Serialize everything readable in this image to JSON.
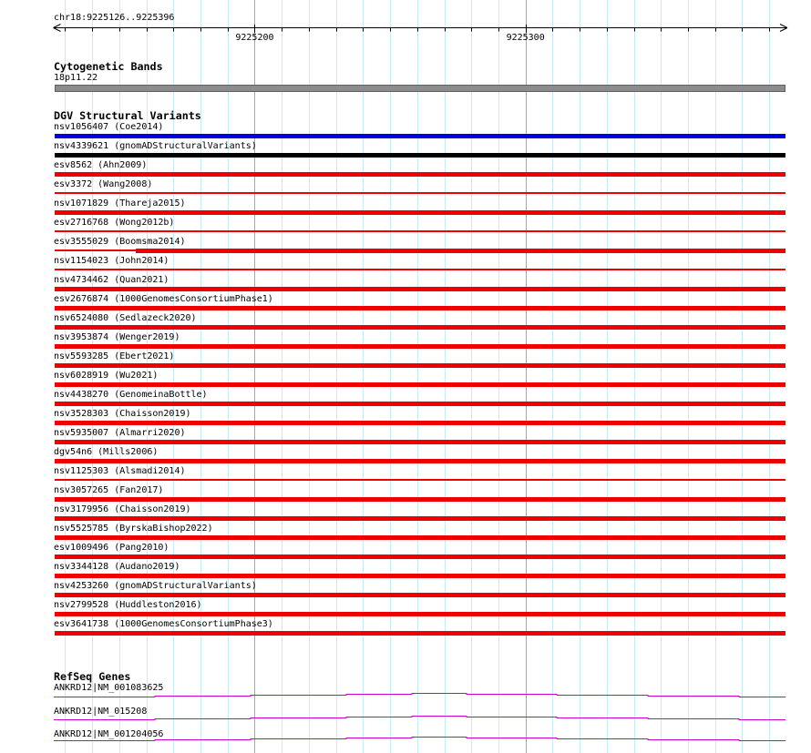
{
  "region": {
    "title": "chr18:9225126..9225396",
    "chromosome": "chr18",
    "start": 9225126,
    "end": 9225396
  },
  "ruler": {
    "minor_step_bp": 10,
    "major_step_bp": 100,
    "major_ticks": [
      {
        "position": 9225200,
        "label": "9225200"
      },
      {
        "position": 9225300,
        "label": "9225300"
      }
    ]
  },
  "grid": {
    "minor_color": "#c8edf4",
    "major_color": "#77b6d6"
  },
  "tracks": {
    "cytogenetic_bands": {
      "header": "Cytogenetic Bands",
      "band": {
        "name": "18p11.22",
        "fill": "#8c8c8c",
        "border": "#5f5f5f"
      }
    },
    "dgv_structural_variants": {
      "header": "DGV Structural Variants",
      "variants": [
        {
          "label": "nsv1056407 (Coe2014)",
          "color": "#0000e0",
          "segments": [
            {
              "start": 9225126,
              "end": 9225396,
              "thick": true
            }
          ]
        },
        {
          "label": "nsv4339621 (gnomADStructuralVariants)",
          "color": "#000000",
          "segments": [
            {
              "start": 9225126,
              "end": 9225396,
              "thick": true
            }
          ]
        },
        {
          "label": "esv8562 (Ahn2009)",
          "color": "#ee0000",
          "segments": [
            {
              "start": 9225126,
              "end": 9225396,
              "thick": true
            }
          ]
        },
        {
          "label": "esv3372 (Wang2008)",
          "color": "#ee0000",
          "segments": [
            {
              "start": 9225126,
              "end": 9225396,
              "thick": false
            }
          ]
        },
        {
          "label": "nsv1071829 (Thareja2015)",
          "color": "#ee0000",
          "segments": [
            {
              "start": 9225126,
              "end": 9225396,
              "thick": true
            }
          ]
        },
        {
          "label": "esv2716768 (Wong2012b)",
          "color": "#ee0000",
          "segments": [
            {
              "start": 9225126,
              "end": 9225396,
              "thick": false
            }
          ]
        },
        {
          "label": "esv3555029 (Boomsma2014)",
          "color": "#ee0000",
          "segments": [
            {
              "start": 9225126,
              "end": 9225156,
              "thick": false
            },
            {
              "start": 9225156,
              "end": 9225396,
              "thick": true
            }
          ]
        },
        {
          "label": "nsv1154023 (John2014)",
          "color": "#ee0000",
          "segments": [
            {
              "start": 9225126,
              "end": 9225396,
              "thick": false
            }
          ]
        },
        {
          "label": "nsv4734462 (Quan2021)",
          "color": "#ee0000",
          "segments": [
            {
              "start": 9225126,
              "end": 9225396,
              "thick": true
            }
          ]
        },
        {
          "label": "esv2676874 (1000GenomesConsortiumPhase1)",
          "color": "#ee0000",
          "segments": [
            {
              "start": 9225126,
              "end": 9225396,
              "thick": true
            }
          ]
        },
        {
          "label": "nsv6524080 (Sedlazeck2020)",
          "color": "#ee0000",
          "segments": [
            {
              "start": 9225126,
              "end": 9225396,
              "thick": true
            }
          ]
        },
        {
          "label": "nsv3953874 (Wenger2019)",
          "color": "#ee0000",
          "segments": [
            {
              "start": 9225126,
              "end": 9225396,
              "thick": true
            }
          ]
        },
        {
          "label": "nsv5593285 (Ebert2021)",
          "color": "#ee0000",
          "segments": [
            {
              "start": 9225126,
              "end": 9225396,
              "thick": true
            }
          ]
        },
        {
          "label": "nsv6028919 (Wu2021)",
          "color": "#ee0000",
          "segments": [
            {
              "start": 9225126,
              "end": 9225396,
              "thick": true
            }
          ]
        },
        {
          "label": "nsv4438270 (GenomeinaBottle)",
          "color": "#ee0000",
          "segments": [
            {
              "start": 9225126,
              "end": 9225396,
              "thick": true
            }
          ]
        },
        {
          "label": "nsv3528303 (Chaisson2019)",
          "color": "#ee0000",
          "segments": [
            {
              "start": 9225126,
              "end": 9225396,
              "thick": true
            }
          ]
        },
        {
          "label": "nsv5935007 (Almarri2020)",
          "color": "#ee0000",
          "segments": [
            {
              "start": 9225126,
              "end": 9225396,
              "thick": true
            }
          ]
        },
        {
          "label": "dgv54n6 (Mills2006)",
          "color": "#ee0000",
          "segments": [
            {
              "start": 9225126,
              "end": 9225396,
              "thick": true
            }
          ]
        },
        {
          "label": "nsv1125303 (Alsmadi2014)",
          "color": "#ee0000",
          "segments": [
            {
              "start": 9225126,
              "end": 9225396,
              "thick": false
            }
          ]
        },
        {
          "label": "nsv3057265 (Fan2017)",
          "color": "#ee0000",
          "segments": [
            {
              "start": 9225126,
              "end": 9225396,
              "thick": true
            }
          ]
        },
        {
          "label": "nsv3179956 (Chaisson2019)",
          "color": "#ee0000",
          "segments": [
            {
              "start": 9225126,
              "end": 9225396,
              "thick": true
            }
          ]
        },
        {
          "label": "nsv5525785 (ByrskaBishop2022)",
          "color": "#ee0000",
          "segments": [
            {
              "start": 9225126,
              "end": 9225396,
              "thick": true
            }
          ]
        },
        {
          "label": "esv1009496 (Pang2010)",
          "color": "#ee0000",
          "segments": [
            {
              "start": 9225126,
              "end": 9225396,
              "thick": true
            }
          ]
        },
        {
          "label": "nsv3344128 (Audano2019)",
          "color": "#ee0000",
          "segments": [
            {
              "start": 9225126,
              "end": 9225396,
              "thick": true
            }
          ]
        },
        {
          "label": "nsv4253260 (gnomADStructuralVariants)",
          "color": "#ee0000",
          "segments": [
            {
              "start": 9225126,
              "end": 9225396,
              "thick": true
            }
          ]
        },
        {
          "label": "nsv2799528 (Huddleston2016)",
          "color": "#ee0000",
          "segments": [
            {
              "start": 9225126,
              "end": 9225396,
              "thick": true
            }
          ]
        },
        {
          "label": "esv3641738 (1000GenomesConsortiumPhase3)",
          "color": "#ee0000",
          "segments": [
            {
              "start": 9225126,
              "end": 9225396,
              "thick": true
            }
          ]
        }
      ]
    },
    "refseq_genes": {
      "header": "RefSeq Genes",
      "color": "#cc00cc",
      "genes": [
        {
          "label": "ANKRD12|NM_001083625"
        },
        {
          "label": "ANKRD12|NM_015208"
        },
        {
          "label": "ANKRD12|NM_001204056"
        }
      ]
    }
  }
}
